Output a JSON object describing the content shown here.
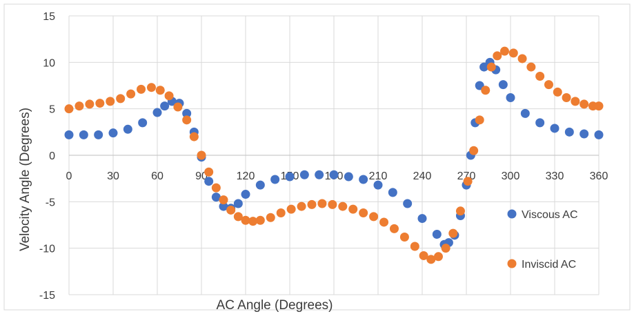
{
  "chart_data": {
    "type": "scatter",
    "title": "",
    "xlabel": "AC Angle (Degrees)",
    "ylabel": "Velocity Angle (Degrees)",
    "xlim": [
      0,
      360
    ],
    "ylim": [
      -15,
      15
    ],
    "x_ticks": [
      0,
      30,
      60,
      90,
      120,
      150,
      180,
      210,
      240,
      270,
      300,
      330,
      360
    ],
    "y_ticks": [
      -15,
      -10,
      -5,
      0,
      5,
      10,
      15
    ],
    "grid": true,
    "legend_position": "right",
    "series": [
      {
        "name": "Viscous AC",
        "color": "#4472C4",
        "points": [
          [
            0,
            2.2
          ],
          [
            10,
            2.2
          ],
          [
            20,
            2.2
          ],
          [
            30,
            2.4
          ],
          [
            40,
            2.8
          ],
          [
            50,
            3.5
          ],
          [
            60,
            4.6
          ],
          [
            65,
            5.3
          ],
          [
            70,
            5.8
          ],
          [
            75,
            5.6
          ],
          [
            80,
            4.5
          ],
          [
            85,
            2.5
          ],
          [
            90,
            -0.2
          ],
          [
            95,
            -2.8
          ],
          [
            100,
            -4.5
          ],
          [
            105,
            -5.5
          ],
          [
            110,
            -5.7
          ],
          [
            115,
            -5.2
          ],
          [
            120,
            -4.2
          ],
          [
            130,
            -3.2
          ],
          [
            140,
            -2.6
          ],
          [
            150,
            -2.3
          ],
          [
            160,
            -2.1
          ],
          [
            170,
            -2.1
          ],
          [
            180,
            -2.1
          ],
          [
            190,
            -2.3
          ],
          [
            200,
            -2.6
          ],
          [
            210,
            -3.2
          ],
          [
            220,
            -4.0
          ],
          [
            230,
            -5.2
          ],
          [
            240,
            -6.8
          ],
          [
            250,
            -8.5
          ],
          [
            255,
            -9.6
          ],
          [
            258,
            -9.4
          ],
          [
            262,
            -8.6
          ],
          [
            266,
            -6.5
          ],
          [
            270,
            -3.2
          ],
          [
            273,
            0.0
          ],
          [
            276,
            3.5
          ],
          [
            279,
            7.5
          ],
          [
            282,
            9.5
          ],
          [
            286,
            10.0
          ],
          [
            290,
            9.2
          ],
          [
            295,
            7.6
          ],
          [
            300,
            6.2
          ],
          [
            310,
            4.5
          ],
          [
            320,
            3.5
          ],
          [
            330,
            2.9
          ],
          [
            340,
            2.5
          ],
          [
            350,
            2.3
          ],
          [
            360,
            2.2
          ]
        ]
      },
      {
        "name": "Inviscid AC",
        "color": "#ED7D31",
        "points": [
          [
            0,
            5.0
          ],
          [
            7,
            5.3
          ],
          [
            14,
            5.5
          ],
          [
            21,
            5.6
          ],
          [
            28,
            5.8
          ],
          [
            35,
            6.1
          ],
          [
            42,
            6.6
          ],
          [
            49,
            7.1
          ],
          [
            56,
            7.3
          ],
          [
            62,
            7.0
          ],
          [
            68,
            6.4
          ],
          [
            74,
            5.2
          ],
          [
            80,
            3.8
          ],
          [
            85,
            2.0
          ],
          [
            90,
            0.0
          ],
          [
            95,
            -1.8
          ],
          [
            100,
            -3.5
          ],
          [
            105,
            -4.8
          ],
          [
            110,
            -5.9
          ],
          [
            115,
            -6.6
          ],
          [
            120,
            -7.0
          ],
          [
            125,
            -7.1
          ],
          [
            130,
            -7.0
          ],
          [
            137,
            -6.7
          ],
          [
            144,
            -6.2
          ],
          [
            151,
            -5.8
          ],
          [
            158,
            -5.5
          ],
          [
            165,
            -5.3
          ],
          [
            172,
            -5.2
          ],
          [
            179,
            -5.3
          ],
          [
            186,
            -5.5
          ],
          [
            193,
            -5.8
          ],
          [
            200,
            -6.2
          ],
          [
            207,
            -6.6
          ],
          [
            214,
            -7.2
          ],
          [
            221,
            -7.9
          ],
          [
            228,
            -8.8
          ],
          [
            235,
            -9.8
          ],
          [
            241,
            -10.8
          ],
          [
            246,
            -11.2
          ],
          [
            251,
            -10.9
          ],
          [
            256,
            -10.0
          ],
          [
            261,
            -8.4
          ],
          [
            266,
            -6.0
          ],
          [
            271,
            -2.8
          ],
          [
            275,
            0.5
          ],
          [
            279,
            3.8
          ],
          [
            283,
            7.0
          ],
          [
            287,
            9.5
          ],
          [
            291,
            10.7
          ],
          [
            296,
            11.2
          ],
          [
            302,
            11.0
          ],
          [
            308,
            10.4
          ],
          [
            314,
            9.5
          ],
          [
            320,
            8.5
          ],
          [
            326,
            7.6
          ],
          [
            332,
            6.8
          ],
          [
            338,
            6.2
          ],
          [
            344,
            5.8
          ],
          [
            350,
            5.5
          ],
          [
            356,
            5.3
          ],
          [
            360,
            5.3
          ]
        ]
      }
    ]
  }
}
